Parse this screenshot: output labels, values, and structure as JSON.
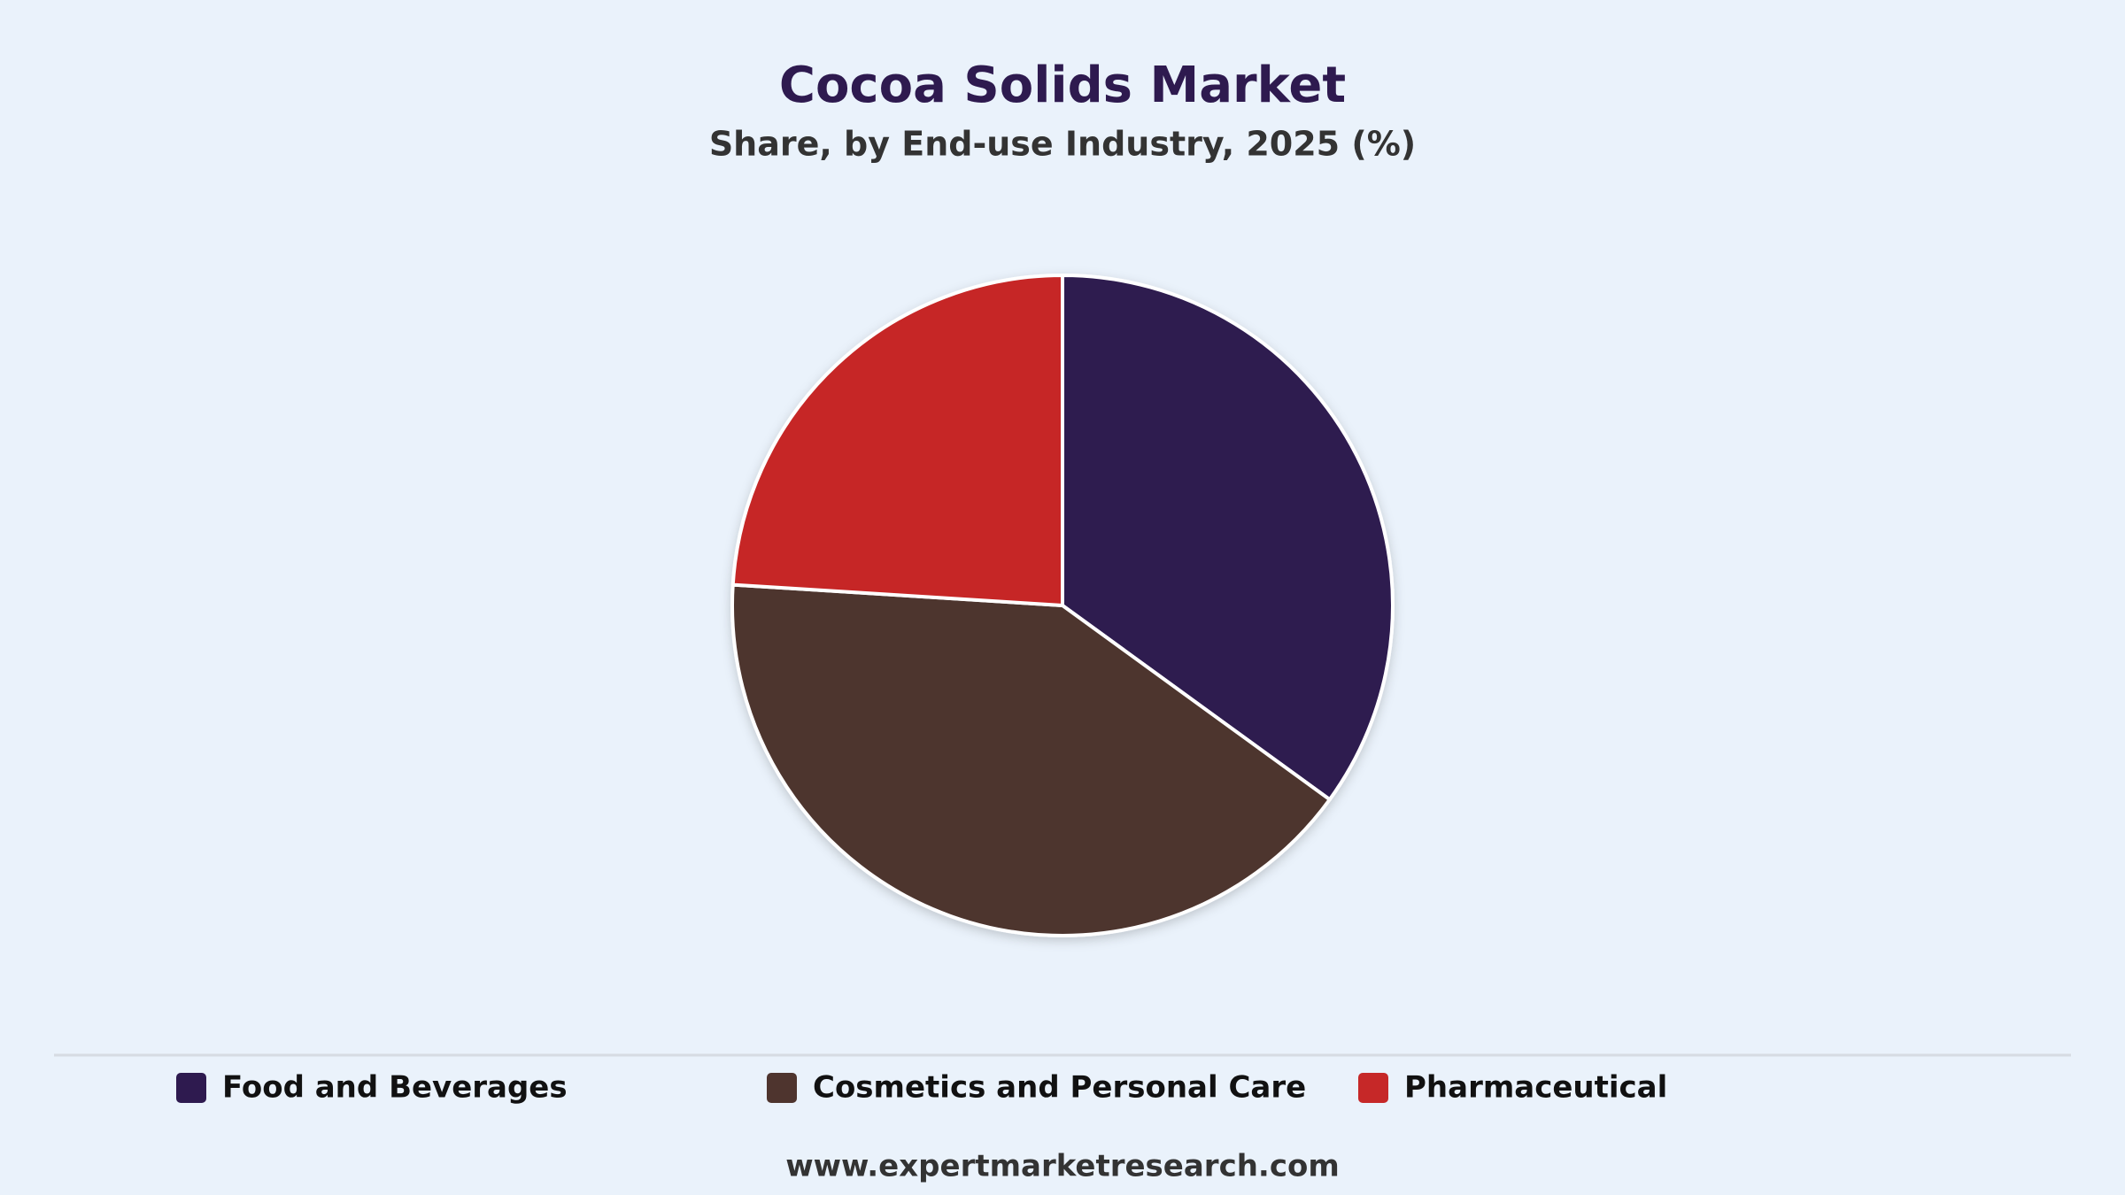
{
  "chart_data": {
    "type": "pie",
    "title": "Cocoa Solids Market",
    "subtitle": "Share, by End-use Industry, 2025 (%)",
    "categories": [
      "Food and Beverages",
      "Cosmetics and Personal Care",
      "Pharmaceutical"
    ],
    "values": [
      35,
      41,
      24
    ],
    "colors": [
      "#2e1a4f",
      "#4e342e",
      "#c62828"
    ],
    "source": "www.expertmarketresearch.com"
  }
}
